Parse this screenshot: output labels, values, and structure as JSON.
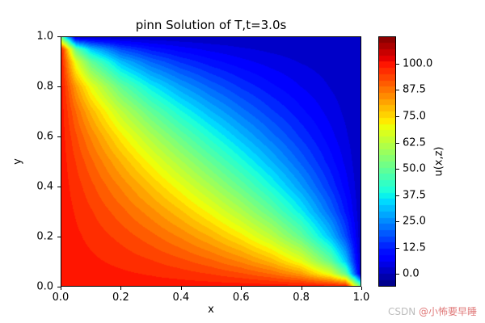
{
  "title": "pinn Solution of T,t=3.0s",
  "axes": {
    "xlabel": "x",
    "ylabel": "y",
    "x_ticks": {
      "values": [
        0,
        0.2,
        0.4,
        0.6,
        0.8,
        1.0
      ],
      "labels": [
        "0.0",
        "0.2",
        "0.4",
        "0.6",
        "0.8",
        "1.0"
      ]
    },
    "y_ticks": {
      "values": [
        0,
        0.2,
        0.4,
        0.6,
        0.8,
        1.0
      ],
      "labels": [
        "0.0",
        "0.2",
        "0.4",
        "0.6",
        "0.8",
        "1.0"
      ]
    }
  },
  "colorbar": {
    "label": "u(x,z)",
    "tick_values": [
      0,
      12.5,
      25,
      37.5,
      50,
      62.5,
      75,
      87.5,
      100
    ],
    "tick_labels": [
      "0.0",
      "12.5",
      "25.0",
      "37.5",
      "50.0",
      "62.5",
      "75.0",
      "87.5",
      "100.0"
    ]
  },
  "watermark": {
    "prefix": "CSDN ",
    "name": "@小怖要早睡"
  },
  "chart_data": {
    "type": "heatmap",
    "title": "pinn Solution of T,t=3.0s",
    "xlabel": "x",
    "ylabel": "y",
    "zlabel": "u(x,z)",
    "colormap": "jet",
    "render": "filled-contours",
    "levels": 40,
    "vmin": -6,
    "vmax": 113,
    "xlim": [
      0,
      1
    ],
    "ylim": [
      0,
      1
    ],
    "colorbar_ticks": [
      0,
      12.5,
      25,
      37.5,
      50,
      62.5,
      75,
      87.5,
      100
    ],
    "x": [
      0,
      0.05,
      0.1,
      0.2,
      0.3,
      0.4,
      0.5,
      0.6,
      0.7,
      0.8,
      0.9,
      0.95,
      1
    ],
    "y": [
      0,
      0.05,
      0.1,
      0.2,
      0.3,
      0.4,
      0.5,
      0.6,
      0.7,
      0.8,
      0.9,
      0.95,
      1
    ],
    "values": [
      [
        100,
        100,
        100,
        100,
        100,
        100,
        100,
        100,
        100,
        100,
        100,
        100,
        50
      ],
      [
        100,
        99.72,
        99.42,
        98.7,
        97.8,
        96.61,
        95,
        92.68,
        89.06,
        82.61,
        67.86,
        50,
        0
      ],
      [
        100,
        99.42,
        98.78,
        97.3,
        95.46,
        93.11,
        90,
        85.71,
        79.41,
        69.23,
        50,
        32.14,
        0
      ],
      [
        100,
        98.7,
        97.3,
        94.12,
        90.32,
        85.71,
        80,
        72.73,
        63.16,
        50,
        30.77,
        17.39,
        0
      ],
      [
        100,
        97.8,
        95.46,
        90.32,
        84.48,
        77.78,
        70,
        60.87,
        50,
        36.84,
        20.59,
        10.94,
        0
      ],
      [
        100,
        96.61,
        93.11,
        85.71,
        77.78,
        69.23,
        60,
        50,
        39.13,
        27.27,
        14.29,
        7.32,
        0
      ],
      [
        100,
        95,
        90,
        80,
        70,
        60,
        50,
        40,
        30,
        20,
        10,
        5,
        0
      ],
      [
        100,
        92.68,
        85.71,
        72.73,
        60.87,
        50,
        40,
        30.77,
        22.22,
        14.29,
        6.9,
        3.39,
        0
      ],
      [
        100,
        89.06,
        79.41,
        63.16,
        50,
        39.13,
        30,
        22.22,
        15.52,
        9.68,
        4.55,
        2.2,
        0
      ],
      [
        100,
        82.61,
        69.23,
        50,
        36.84,
        27.27,
        20,
        14.29,
        9.68,
        5.88,
        2.7,
        1.3,
        0
      ],
      [
        100,
        67.86,
        50,
        30.77,
        20.59,
        14.29,
        10,
        6.9,
        4.55,
        2.7,
        1.22,
        0.58,
        0
      ],
      [
        100,
        50,
        32.14,
        17.39,
        10.94,
        7.32,
        5,
        3.39,
        2.2,
        1.3,
        0.58,
        0.28,
        0
      ],
      [
        50,
        0,
        0,
        0,
        0,
        0,
        0,
        0,
        0,
        0,
        0,
        0,
        0
      ]
    ]
  }
}
